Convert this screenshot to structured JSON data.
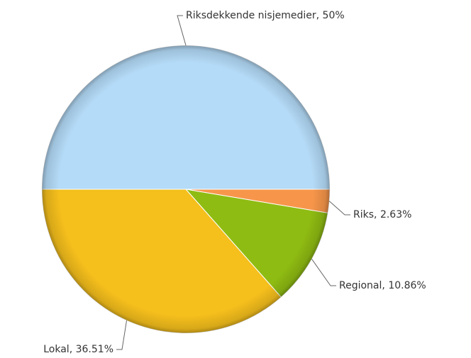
{
  "chart_data": {
    "type": "pie",
    "categories": [
      "Riksdekkende nisjemedier",
      "Riks",
      "Regional",
      "Lokal"
    ],
    "values": [
      50,
      2.63,
      10.86,
      36.51
    ],
    "value_labels": [
      "50%",
      "2.63%",
      "10.86%",
      "36.51%"
    ],
    "colors": [
      "#b4dbf8",
      "#f7964a",
      "#8fbc12",
      "#f5bf1c"
    ]
  }
}
